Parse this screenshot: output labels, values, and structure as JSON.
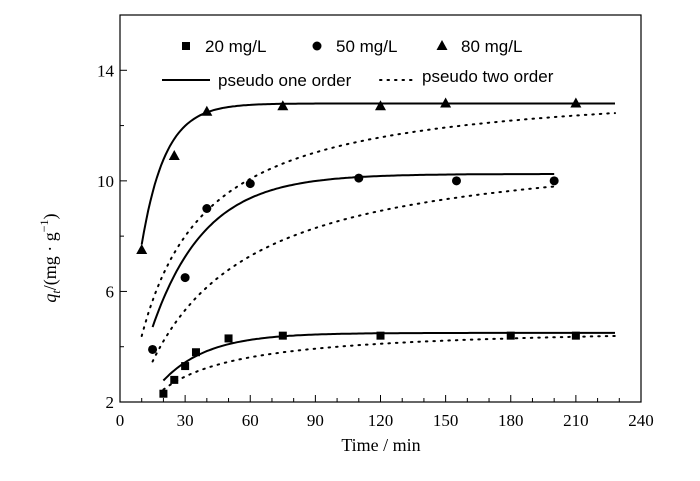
{
  "chart_data": {
    "type": "scatter",
    "xlabel": "Time / min",
    "ylabel_main": "q",
    "ylabel_sub": "t",
    "ylabel_unit": "/(mg · g",
    "ylabel_sup": "−1",
    "ylabel_close": ")",
    "xlim": [
      0,
      240
    ],
    "ylim": [
      2,
      16
    ],
    "xticks": [
      0,
      30,
      60,
      90,
      120,
      150,
      180,
      210,
      240
    ],
    "yticks": [
      2,
      6,
      10,
      14
    ],
    "grid": false,
    "legend_position": "top",
    "series": [
      {
        "name": "20 mg/L",
        "marker": "square",
        "x": [
          20,
          25,
          30,
          35,
          50,
          75,
          120,
          180,
          210
        ],
        "y": [
          2.3,
          2.8,
          3.3,
          3.8,
          4.3,
          4.4,
          4.4,
          4.4,
          4.4
        ]
      },
      {
        "name": "50 mg/L",
        "marker": "circle",
        "x": [
          15,
          30,
          40,
          60,
          110,
          155,
          200
        ],
        "y": [
          3.9,
          6.5,
          9.0,
          9.9,
          10.1,
          10.0,
          10.0
        ]
      },
      {
        "name": "80 mg/L",
        "marker": "triangle",
        "x": [
          10,
          25,
          40,
          75,
          120,
          150,
          210
        ],
        "y": [
          7.5,
          10.9,
          12.5,
          12.7,
          12.7,
          12.8,
          12.8
        ]
      }
    ],
    "fits": [
      {
        "name": "pseudo one order",
        "style": "solid",
        "model": "first",
        "qe": [
          4.5,
          10.25,
          12.8
        ],
        "k": [
          0.048,
          0.041,
          0.092
        ],
        "x_start": [
          20,
          15,
          10
        ],
        "x_end": [
          228,
          200,
          228
        ]
      },
      {
        "name": "pseudo two order",
        "style": "dotted",
        "model": "second",
        "qe": [
          4.75,
          11.5,
          13.6
        ],
        "k": [
          0.0112,
          0.0025,
          0.0035
        ],
        "x_start": [
          20,
          15,
          10
        ],
        "x_end": [
          228,
          200,
          228
        ]
      }
    ]
  }
}
